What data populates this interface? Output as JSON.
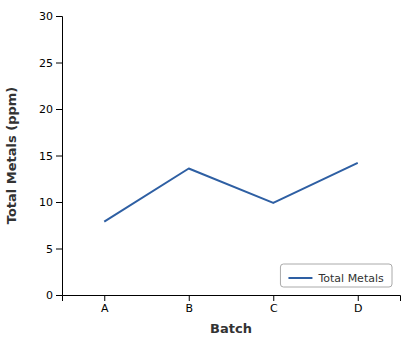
{
  "chart_data": {
    "type": "line",
    "categories": [
      "A",
      "B",
      "C",
      "D"
    ],
    "series": [
      {
        "name": "Total Metals",
        "color": "#2E5FA3",
        "values": [
          7.9,
          13.6,
          9.9,
          14.2
        ]
      }
    ],
    "xlabel": "Batch",
    "ylabel": "Total Metals (ppm)",
    "ylim": [
      0,
      30
    ],
    "yticks": [
      0,
      5,
      10,
      15,
      20,
      25,
      30
    ],
    "grid": false,
    "legend": "lower right"
  }
}
